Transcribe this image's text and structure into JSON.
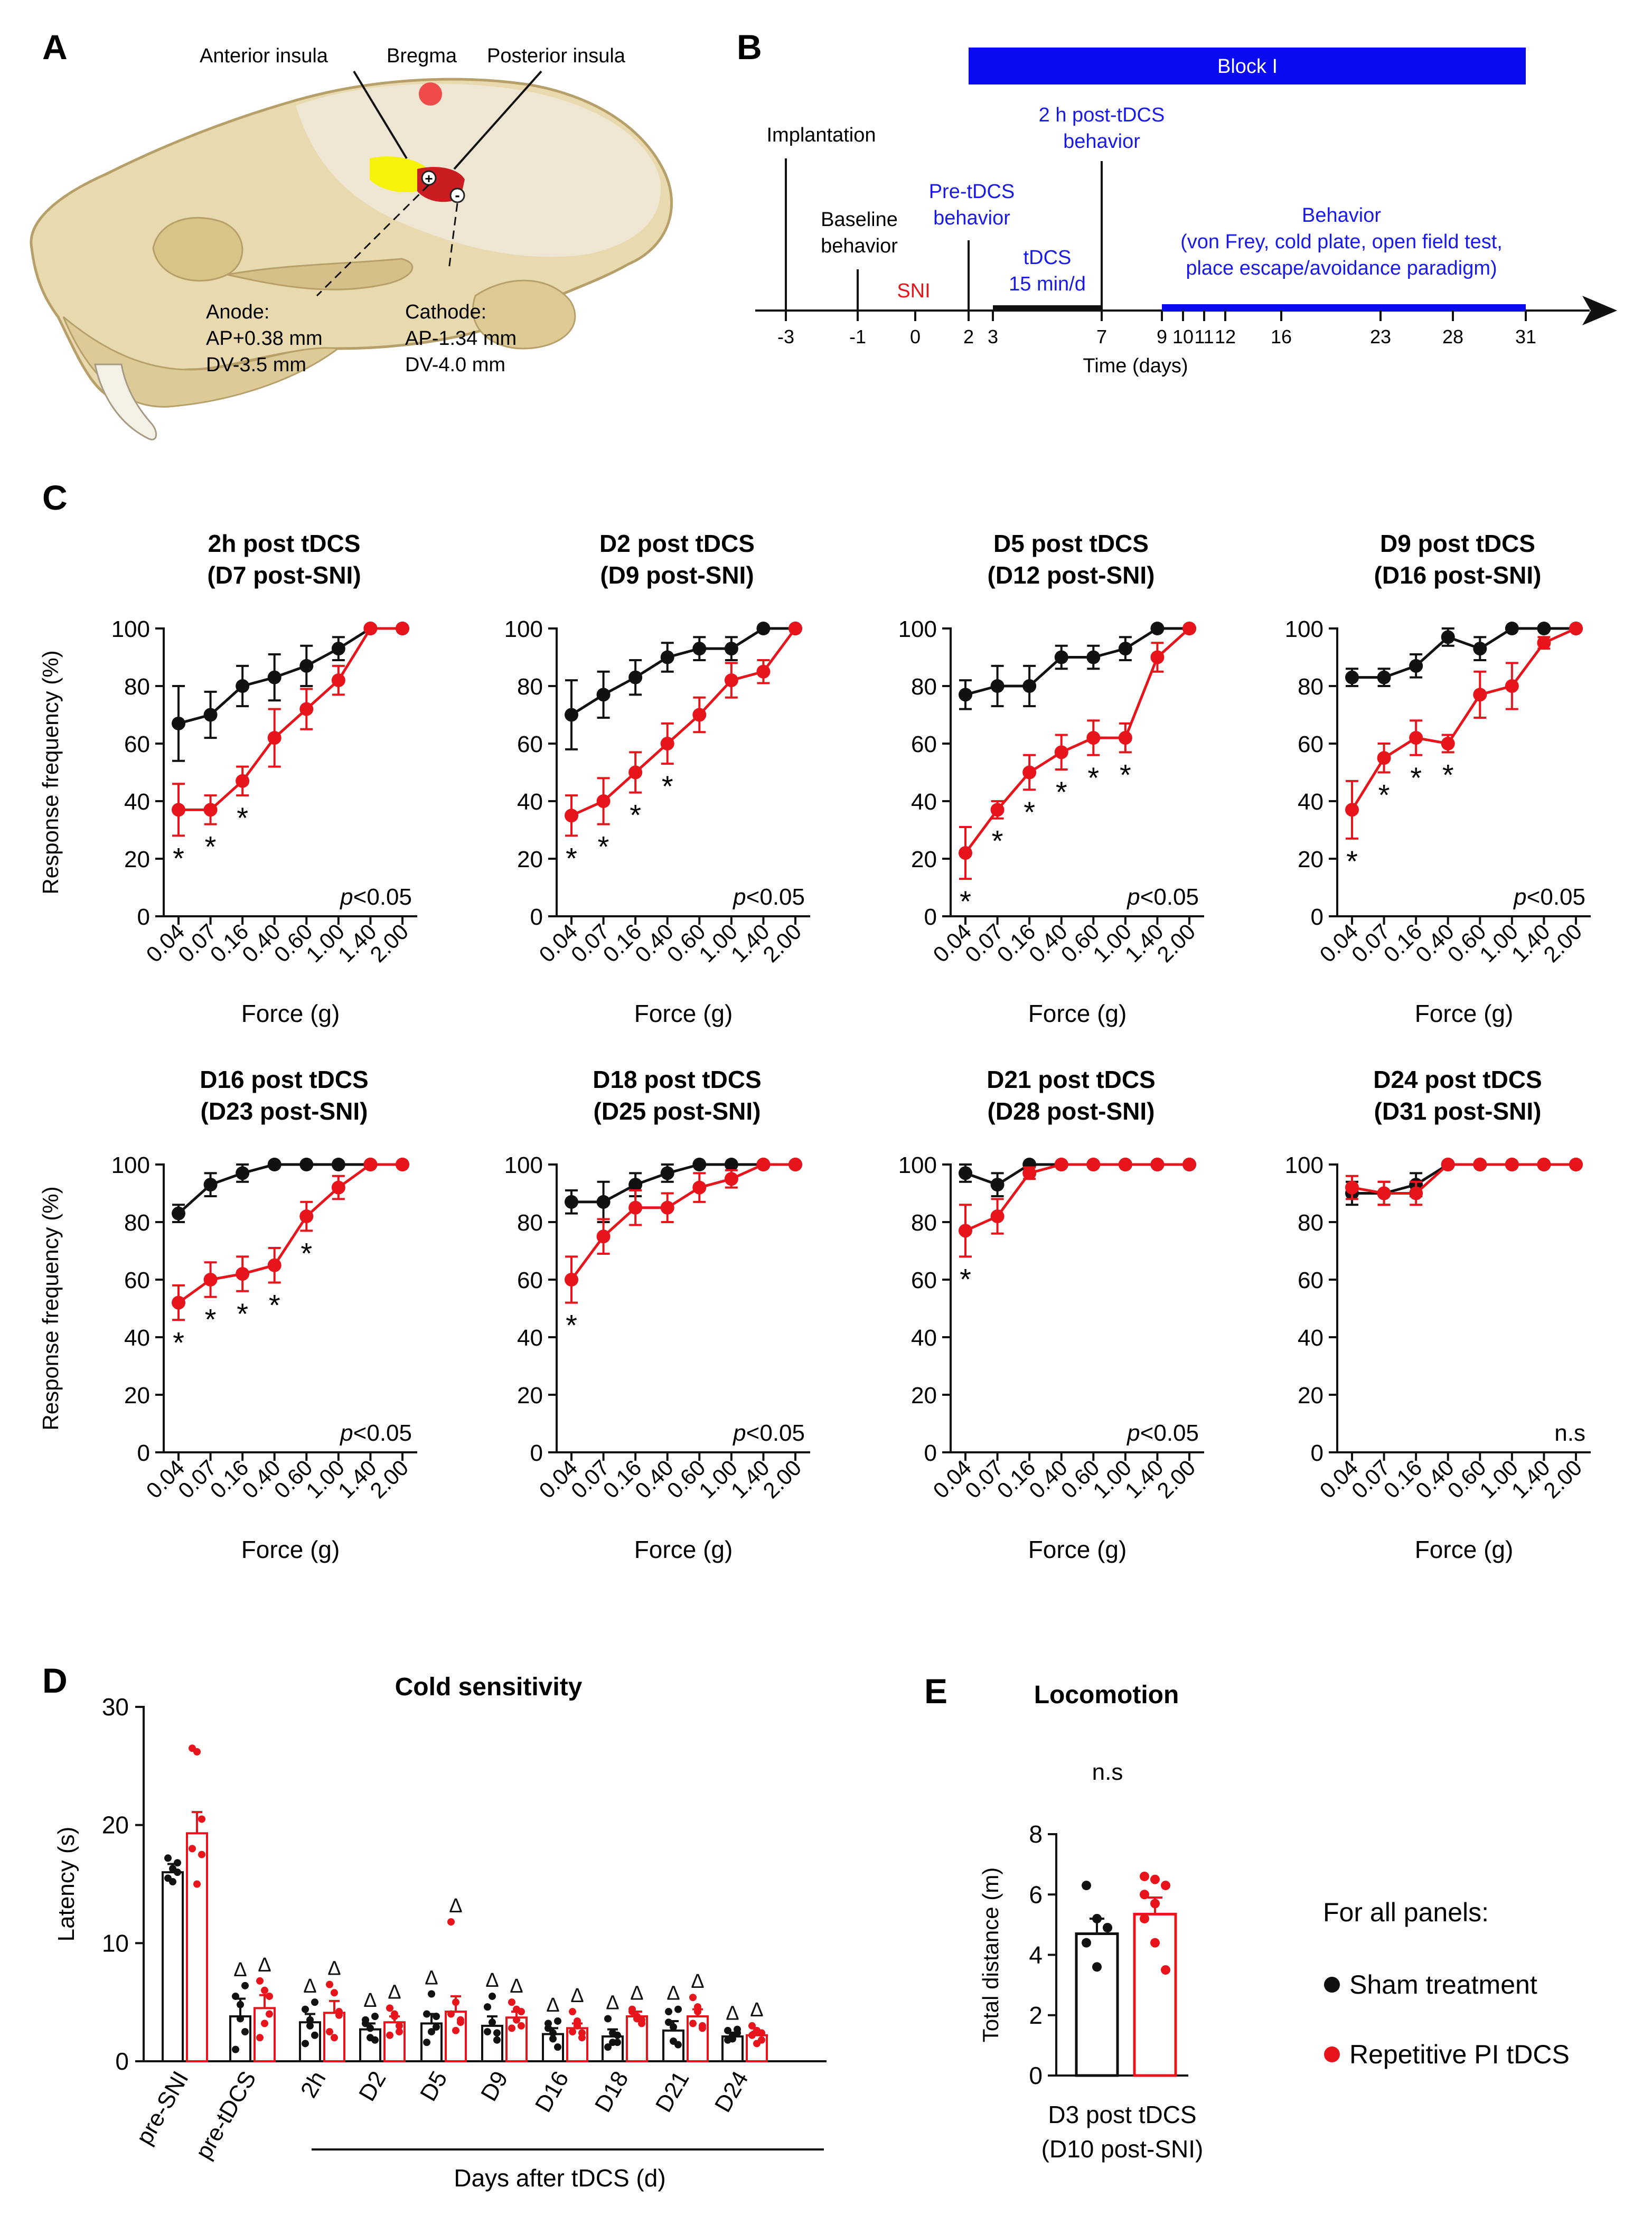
{
  "colors": {
    "sham": "#111111",
    "tdcs": "#e8141c",
    "timeline_blue": "#0a0af0",
    "text_blue": "#1a1ae6",
    "skull": "#e8d9ae",
    "skull_edge": "#b79f69",
    "anterior_insula": "#f6f20a",
    "posterior_insula": "#c91d22",
    "bregma": "#ef4b4b"
  },
  "panels": {
    "A": "A",
    "B": "B",
    "C": "C",
    "D": "D",
    "E": "E"
  },
  "panel_a": {
    "anterior_insula": "Anterior insula",
    "bregma": "Bregma",
    "posterior_insula": "Posterior insula",
    "anode_title": "Anode:",
    "anode_ap": "AP+0.38 mm",
    "anode_dv": "DV-3.5 mm",
    "cathode_title": "Cathode:",
    "cathode_ap": "AP-1.34 mm",
    "cathode_dv": "DV-4.0 mm",
    "anode_symbol": "+",
    "cathode_symbol": "-"
  },
  "panel_b": {
    "block_label": "Block I",
    "implantation": "Implantation",
    "baseline_1": "Baseline",
    "baseline_2": "behavior",
    "sni": "SNI",
    "pre_tdcs_1": "Pre-tDCS",
    "pre_tdcs_2": "behavior",
    "tdcs_1": "tDCS",
    "tdcs_2": "15 min/d",
    "post_1": "2 h post-tDCS",
    "post_2": "behavior",
    "behavior_1": "Behavior",
    "behavior_2": "(von Frey, cold plate, open field test,",
    "behavior_3": "place escape/avoidance paradigm)",
    "ticks": [
      "-3",
      "-1",
      "0",
      "2",
      "3",
      "7",
      "9",
      "10",
      "11",
      "12",
      "16",
      "23",
      "28",
      "31"
    ],
    "xlabel": "Time (days)"
  },
  "legend": {
    "title": "For all panels:",
    "sham": "Sham treatment",
    "tdcs": "Repetitive PI tDCS"
  },
  "chart_data": [
    {
      "type": "line",
      "panel": "C",
      "title_line1": "2h post tDCS",
      "title_line2": "(D7 post-SNI)",
      "categories": [
        "0.04",
        "0.07",
        "0.16",
        "0.40",
        "0.60",
        "1.00",
        "1.40",
        "2.00"
      ],
      "xlabel": "Force (g)",
      "ylabel": "Response frequency (%)",
      "ylim": [
        0,
        100
      ],
      "yticks": [
        "0",
        "20",
        "40",
        "60",
        "80",
        "100"
      ],
      "series": [
        {
          "name": "Sham treatment",
          "values": [
            67,
            70,
            80,
            83,
            87,
            93,
            100,
            100
          ],
          "err": [
            13,
            8,
            7,
            8,
            7,
            4,
            0,
            0
          ]
        },
        {
          "name": "Repetitive PI tDCS",
          "values": [
            37,
            37,
            47,
            62,
            72,
            82,
            100,
            100
          ],
          "err": [
            9,
            5,
            5,
            10,
            7,
            5,
            0,
            0
          ]
        }
      ],
      "stars": [
        "*",
        "*",
        "*",
        "",
        "",
        "",
        "",
        ""
      ],
      "pvalue_italic": "p",
      "pvalue_rest": "<0.05"
    },
    {
      "type": "line",
      "panel": "C",
      "title_line1": "D2 post tDCS",
      "title_line2": "(D9 post-SNI)",
      "categories": [
        "0.04",
        "0.07",
        "0.16",
        "0.40",
        "0.60",
        "1.00",
        "1.40",
        "2.00"
      ],
      "xlabel": "Force (g)",
      "ylabel": "",
      "ylim": [
        0,
        100
      ],
      "yticks": [
        "0",
        "20",
        "40",
        "60",
        "80",
        "100"
      ],
      "series": [
        {
          "name": "Sham treatment",
          "values": [
            70,
            77,
            83,
            90,
            93,
            93,
            100,
            100
          ],
          "err": [
            12,
            8,
            6,
            5,
            4,
            4,
            0,
            0
          ]
        },
        {
          "name": "Repetitive PI tDCS",
          "values": [
            35,
            40,
            50,
            60,
            70,
            82,
            85,
            100
          ],
          "err": [
            7,
            8,
            7,
            7,
            6,
            6,
            4,
            0
          ]
        }
      ],
      "stars": [
        "*",
        "*",
        "*",
        "*",
        "",
        "",
        "",
        ""
      ],
      "pvalue_italic": "p",
      "pvalue_rest": "<0.05"
    },
    {
      "type": "line",
      "panel": "C",
      "title_line1": "D5 post tDCS",
      "title_line2": "(D12 post-SNI)",
      "categories": [
        "0.04",
        "0.07",
        "0.16",
        "0.40",
        "0.60",
        "1.00",
        "1.40",
        "2.00"
      ],
      "xlabel": "Force (g)",
      "ylabel": "",
      "ylim": [
        0,
        100
      ],
      "yticks": [
        "0",
        "20",
        "40",
        "60",
        "80",
        "100"
      ],
      "series": [
        {
          "name": "Sham treatment",
          "values": [
            77,
            80,
            80,
            90,
            90,
            93,
            100,
            100
          ],
          "err": [
            5,
            7,
            7,
            4,
            4,
            4,
            0,
            0
          ]
        },
        {
          "name": "Repetitive PI tDCS",
          "values": [
            22,
            37,
            50,
            57,
            62,
            62,
            90,
            100
          ],
          "err": [
            9,
            3,
            6,
            6,
            6,
            5,
            5,
            0
          ]
        }
      ],
      "stars": [
        "*",
        "*",
        "*",
        "*",
        "*",
        "*",
        "",
        ""
      ],
      "pvalue_italic": "p",
      "pvalue_rest": "<0.05"
    },
    {
      "type": "line",
      "panel": "C",
      "title_line1": "D9 post tDCS",
      "title_line2": "(D16 post-SNI)",
      "categories": [
        "0.04",
        "0.07",
        "0.16",
        "0.40",
        "0.60",
        "1.00",
        "1.40",
        "2.00"
      ],
      "xlabel": "Force (g)",
      "ylabel": "",
      "ylim": [
        0,
        100
      ],
      "yticks": [
        "0",
        "20",
        "40",
        "60",
        "80",
        "100"
      ],
      "series": [
        {
          "name": "Sham treatment",
          "values": [
            83,
            83,
            87,
            97,
            93,
            100,
            100,
            100
          ],
          "err": [
            3,
            3,
            4,
            3,
            4,
            0,
            0,
            0
          ]
        },
        {
          "name": "Repetitive PI tDCS",
          "values": [
            37,
            55,
            62,
            60,
            77,
            80,
            95,
            100
          ],
          "err": [
            10,
            5,
            6,
            3,
            8,
            8,
            2,
            0
          ]
        }
      ],
      "stars": [
        "*",
        "*",
        "*",
        "*",
        "",
        "",
        "",
        ""
      ],
      "pvalue_italic": "p",
      "pvalue_rest": "<0.05"
    },
    {
      "type": "line",
      "panel": "C",
      "title_line1": "D16 post tDCS",
      "title_line2": "(D23 post-SNI)",
      "categories": [
        "0.04",
        "0.07",
        "0.16",
        "0.40",
        "0.60",
        "1.00",
        "1.40",
        "2.00"
      ],
      "xlabel": "Force (g)",
      "ylabel": "Response frequency (%)",
      "ylim": [
        0,
        100
      ],
      "yticks": [
        "0",
        "20",
        "40",
        "60",
        "80",
        "100"
      ],
      "series": [
        {
          "name": "Sham treatment",
          "values": [
            83,
            93,
            97,
            100,
            100,
            100,
            100,
            100
          ],
          "err": [
            3,
            4,
            3,
            0,
            0,
            0,
            0,
            0
          ]
        },
        {
          "name": "Repetitive PI tDCS",
          "values": [
            52,
            60,
            62,
            65,
            82,
            92,
            100,
            100
          ],
          "err": [
            6,
            6,
            6,
            6,
            5,
            4,
            0,
            0
          ]
        }
      ],
      "stars": [
        "*",
        "*",
        "*",
        "*",
        "*",
        "",
        "",
        ""
      ],
      "pvalue_italic": "p",
      "pvalue_rest": "<0.05"
    },
    {
      "type": "line",
      "panel": "C",
      "title_line1": "D18 post tDCS",
      "title_line2": "(D25 post-SNI)",
      "categories": [
        "0.04",
        "0.07",
        "0.16",
        "0.40",
        "0.60",
        "1.00",
        "1.40",
        "2.00"
      ],
      "xlabel": "Force (g)",
      "ylabel": "",
      "ylim": [
        0,
        100
      ],
      "yticks": [
        "0",
        "20",
        "40",
        "60",
        "80",
        "100"
      ],
      "series": [
        {
          "name": "Sham treatment",
          "values": [
            87,
            87,
            93,
            97,
            100,
            100,
            100,
            100
          ],
          "err": [
            4,
            7,
            4,
            3,
            0,
            0,
            0,
            0
          ]
        },
        {
          "name": "Repetitive PI tDCS",
          "values": [
            60,
            75,
            85,
            85,
            92,
            95,
            100,
            100
          ],
          "err": [
            8,
            6,
            6,
            5,
            5,
            3,
            0,
            0
          ]
        }
      ],
      "stars": [
        "*",
        "",
        "",
        "",
        "",
        "",
        "",
        ""
      ],
      "pvalue_italic": "p",
      "pvalue_rest": "<0.05"
    },
    {
      "type": "line",
      "panel": "C",
      "title_line1": "D21 post tDCS",
      "title_line2": "(D28 post-SNI)",
      "categories": [
        "0.04",
        "0.07",
        "0.16",
        "0.40",
        "0.60",
        "1.00",
        "1.40",
        "2.00"
      ],
      "xlabel": "Force (g)",
      "ylabel": "",
      "ylim": [
        0,
        100
      ],
      "yticks": [
        "0",
        "20",
        "40",
        "60",
        "80",
        "100"
      ],
      "series": [
        {
          "name": "Sham treatment",
          "values": [
            97,
            93,
            100,
            100,
            100,
            100,
            100,
            100
          ],
          "err": [
            3,
            4,
            0,
            0,
            0,
            0,
            0,
            0
          ]
        },
        {
          "name": "Repetitive PI tDCS",
          "values": [
            77,
            82,
            97,
            100,
            100,
            100,
            100,
            100
          ],
          "err": [
            9,
            6,
            2,
            0,
            0,
            0,
            0,
            0
          ]
        }
      ],
      "stars": [
        "*",
        "",
        "",
        "",
        "",
        "",
        "",
        ""
      ],
      "pvalue_italic": "p",
      "pvalue_rest": "<0.05"
    },
    {
      "type": "line",
      "panel": "C",
      "title_line1": "D24 post tDCS",
      "title_line2": "(D31 post-SNI)",
      "categories": [
        "0.04",
        "0.07",
        "0.16",
        "0.40",
        "0.60",
        "1.00",
        "1.40",
        "2.00"
      ],
      "xlabel": "Force (g)",
      "ylabel": "",
      "ylim": [
        0,
        100
      ],
      "yticks": [
        "0",
        "20",
        "40",
        "60",
        "80",
        "100"
      ],
      "series": [
        {
          "name": "Sham treatment",
          "values": [
            90,
            90,
            93,
            100,
            100,
            100,
            100,
            100
          ],
          "err": [
            4,
            4,
            4,
            0,
            0,
            0,
            0,
            0
          ]
        },
        {
          "name": "Repetitive PI tDCS",
          "values": [
            92,
            90,
            90,
            100,
            100,
            100,
            100,
            100
          ],
          "err": [
            4,
            4,
            4,
            0,
            0,
            0,
            0,
            0
          ]
        }
      ],
      "stars": [
        "",
        "",
        "",
        "",
        "",
        "",
        "",
        ""
      ],
      "pvalue_italic": "",
      "pvalue_rest": "n.s"
    },
    {
      "type": "bar",
      "panel": "D",
      "title": "Cold sensitivity",
      "ylabel": "Latency (s)",
      "ylim": [
        0,
        30
      ],
      "yticks": [
        "0",
        "10",
        "20",
        "30"
      ],
      "categories": [
        "pre-SNI",
        "pre-tDCS",
        "2h",
        "D2",
        "D5",
        "D9",
        "D16",
        "D18",
        "D21",
        "D24"
      ],
      "xlabel": "Days after tDCS (d)",
      "series": [
        {
          "name": "Sham treatment",
          "values": [
            16,
            3.8,
            3.3,
            2.7,
            3.2,
            3,
            2.3,
            2.1,
            2.6,
            2.1
          ],
          "err": [
            0.7,
            1.5,
            0.7,
            0.5,
            0.8,
            0.8,
            0.5,
            0.6,
            0.8,
            0.3
          ],
          "points": [
            [
              15.5,
              16.3,
              16.8,
              17.2,
              15.2,
              16.0
            ],
            [
              5.5,
              4.8,
              2.5,
              1.0,
              3.6,
              6.4
            ],
            [
              4.4,
              3.5,
              2.2,
              1.5,
              3.0,
              5.0
            ],
            [
              3.5,
              2.8,
              1.8,
              3.2,
              2.0,
              3.8
            ],
            [
              4.0,
              2.5,
              3.8,
              1.6,
              5.7,
              2.9
            ],
            [
              4.6,
              3.3,
              1.8,
              2.5,
              5.5,
              2.4
            ],
            [
              3.2,
              2.4,
              1.2,
              2.8,
              1.9,
              3.4
            ],
            [
              3.6,
              1.6,
              2.2,
              1.2,
              2.4,
              1.6
            ],
            [
              4.2,
              2.9,
              1.4,
              3.3,
              1.7,
              4.4
            ],
            [
              2.6,
              1.9,
              2.4,
              1.8,
              2.2,
              2.7
            ]
          ]
        },
        {
          "name": "Repetitive PI tDCS",
          "values": [
            19.3,
            4.5,
            4.1,
            3.3,
            4.2,
            3.7,
            2.8,
            3.8,
            3.8,
            2.2
          ],
          "err": [
            1.8,
            1.1,
            1.0,
            0.5,
            1.3,
            0.5,
            0.4,
            0.4,
            0.6,
            0.3
          ],
          "points": [
            [
              26.5,
              26.2,
              20.5,
              18.0,
              15.0,
              17.5
            ],
            [
              6.8,
              6.0,
              4.0,
              2.0,
              3.2,
              5.5
            ],
            [
              6.5,
              5.8,
              4.2,
              2.5,
              2.0,
              3.9
            ],
            [
              4.5,
              3.8,
              2.5,
              2.2,
              4.0,
              3.0
            ],
            [
              11.8,
              5.0,
              3.5,
              4.0,
              2.6,
              3.3
            ],
            [
              5.0,
              4.4,
              3.0,
              2.8,
              3.5,
              4.2
            ],
            [
              4.2,
              3.4,
              2.0,
              2.5,
              3.0,
              2.4
            ],
            [
              4.4,
              3.6,
              3.2,
              4.2,
              3.8,
              3.5
            ],
            [
              5.4,
              4.6,
              3.0,
              3.2,
              4.2,
              2.8
            ],
            [
              3.0,
              2.6,
              1.8,
              2.2,
              1.5,
              2.4
            ]
          ]
        }
      ],
      "markers": [
        "",
        "Δ",
        "Δ",
        "Δ",
        "Δ",
        "Δ",
        "Δ",
        "Δ",
        "Δ",
        "Δ"
      ]
    },
    {
      "type": "bar",
      "panel": "E",
      "title": "Locomotion",
      "significance": "n.s",
      "ylabel": "Total distance (m)",
      "ylim": [
        0,
        8
      ],
      "yticks": [
        "0",
        "2",
        "4",
        "6",
        "8"
      ],
      "xlabel_line1": "D3 post tDCS",
      "xlabel_line2": "(D10 post-SNI)",
      "series": [
        {
          "name": "Sham treatment",
          "value": 4.7,
          "err": 0.5,
          "points": [
            6.3,
            5.2,
            4.9,
            4.4,
            3.6,
            4.9
          ]
        },
        {
          "name": "Repetitive PI tDCS",
          "value": 5.35,
          "err": 0.55,
          "points": [
            6.6,
            6.5,
            6.3,
            5.2,
            4.4,
            3.5,
            6.0,
            5.7
          ]
        }
      ]
    }
  ]
}
